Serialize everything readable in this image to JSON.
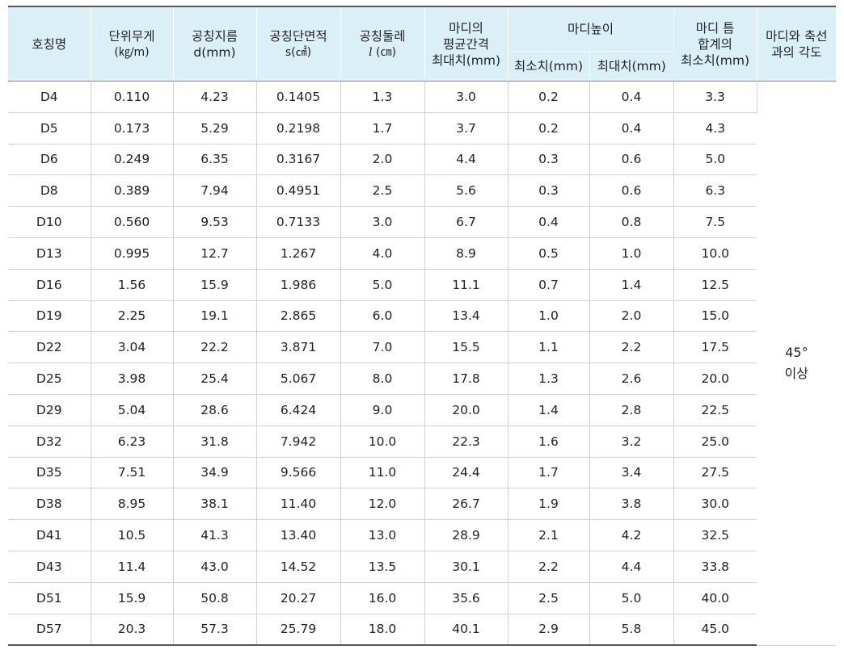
{
  "headers": {
    "name": "호칭명",
    "unit_weight": "단위무게",
    "unit_weight_unit": "(㎏/m)",
    "nominal_diameter": "공칭지름",
    "nominal_diameter_unit": "d(mm)",
    "nominal_area": "공칭단면적",
    "nominal_area_unit": "s(㎠)",
    "nominal_perimeter": "공칭둘레",
    "nominal_perimeter_symbol": "l",
    "nominal_perimeter_unit": "(㎝)",
    "rib_spacing_line1": "마디의",
    "rib_spacing_line2": "평균간격",
    "rib_spacing_line3": "최대치(mm)",
    "rib_height": "마디높이",
    "rib_height_min": "최소치(mm)",
    "rib_height_max": "최대치(mm)",
    "rib_gap_line1": "마디 틈",
    "rib_gap_line2": "합계의",
    "rib_gap_line3": "최소치(mm)",
    "rib_angle_line1": "마디와 축선",
    "rib_angle_line2": "과의 각도"
  },
  "rows": [
    {
      "name": "D4",
      "weight": "0.110",
      "diameter": "4.23",
      "area": "0.1405",
      "perimeter": "1.3",
      "spacing": "3.0",
      "hmin": "0.2",
      "hmax": "0.4",
      "gap": "3.3"
    },
    {
      "name": "D5",
      "weight": "0.173",
      "diameter": "5.29",
      "area": "0.2198",
      "perimeter": "1.7",
      "spacing": "3.7",
      "hmin": "0.2",
      "hmax": "0.4",
      "gap": "4.3"
    },
    {
      "name": "D6",
      "weight": "0.249",
      "diameter": "6.35",
      "area": "0.3167",
      "perimeter": "2.0",
      "spacing": "4.4",
      "hmin": "0.3",
      "hmax": "0.6",
      "gap": "5.0"
    },
    {
      "name": "D8",
      "weight": "0.389",
      "diameter": "7.94",
      "area": "0.4951",
      "perimeter": "2.5",
      "spacing": "5.6",
      "hmin": "0.3",
      "hmax": "0.6",
      "gap": "6.3"
    },
    {
      "name": "D10",
      "weight": "0.560",
      "diameter": "9.53",
      "area": "0.7133",
      "perimeter": "3.0",
      "spacing": "6.7",
      "hmin": "0.4",
      "hmax": "0.8",
      "gap": "7.5"
    },
    {
      "name": "D13",
      "weight": "0.995",
      "diameter": "12.7",
      "area": "1.267",
      "perimeter": "4.0",
      "spacing": "8.9",
      "hmin": "0.5",
      "hmax": "1.0",
      "gap": "10.0"
    },
    {
      "name": "D16",
      "weight": "1.56",
      "diameter": "15.9",
      "area": "1.986",
      "perimeter": "5.0",
      "spacing": "11.1",
      "hmin": "0.7",
      "hmax": "1.4",
      "gap": "12.5"
    },
    {
      "name": "D19",
      "weight": "2.25",
      "diameter": "19.1",
      "area": "2.865",
      "perimeter": "6.0",
      "spacing": "13.4",
      "hmin": "1.0",
      "hmax": "2.0",
      "gap": "15.0"
    },
    {
      "name": "D22",
      "weight": "3.04",
      "diameter": "22.2",
      "area": "3.871",
      "perimeter": "7.0",
      "spacing": "15.5",
      "hmin": "1.1",
      "hmax": "2.2",
      "gap": "17.5"
    },
    {
      "name": "D25",
      "weight": "3.98",
      "diameter": "25.4",
      "area": "5.067",
      "perimeter": "8.0",
      "spacing": "17.8",
      "hmin": "1.3",
      "hmax": "2.6",
      "gap": "20.0"
    },
    {
      "name": "D29",
      "weight": "5.04",
      "diameter": "28.6",
      "area": "6.424",
      "perimeter": "9.0",
      "spacing": "20.0",
      "hmin": "1.4",
      "hmax": "2.8",
      "gap": "22.5"
    },
    {
      "name": "D32",
      "weight": "6.23",
      "diameter": "31.8",
      "area": "7.942",
      "perimeter": "10.0",
      "spacing": "22.3",
      "hmin": "1.6",
      "hmax": "3.2",
      "gap": "25.0"
    },
    {
      "name": "D35",
      "weight": "7.51",
      "diameter": "34.9",
      "area": "9.566",
      "perimeter": "11.0",
      "spacing": "24.4",
      "hmin": "1.7",
      "hmax": "3.4",
      "gap": "27.5"
    },
    {
      "name": "D38",
      "weight": "8.95",
      "diameter": "38.1",
      "area": "11.40",
      "perimeter": "12.0",
      "spacing": "26.7",
      "hmin": "1.9",
      "hmax": "3.8",
      "gap": "30.0"
    },
    {
      "name": "D41",
      "weight": "10.5",
      "diameter": "41.3",
      "area": "13.40",
      "perimeter": "13.0",
      "spacing": "28.9",
      "hmin": "2.1",
      "hmax": "4.2",
      "gap": "32.5"
    },
    {
      "name": "D43",
      "weight": "11.4",
      "diameter": "43.0",
      "area": "14.52",
      "perimeter": "13.5",
      "spacing": "30.1",
      "hmin": "2.2",
      "hmax": "4.4",
      "gap": "33.8"
    },
    {
      "name": "D51",
      "weight": "15.9",
      "diameter": "50.8",
      "area": "20.27",
      "perimeter": "16.0",
      "spacing": "35.6",
      "hmin": "2.5",
      "hmax": "5.0",
      "gap": "40.0"
    },
    {
      "name": "D57",
      "weight": "20.3",
      "diameter": "57.3",
      "area": "25.79",
      "perimeter": "18.0",
      "spacing": "40.1",
      "hmin": "2.9",
      "hmax": "5.8",
      "gap": "45.0"
    }
  ],
  "angle_value_line1": "45°",
  "angle_value_line2": "이상",
  "colors": {
    "header_bg": "#dbeff7",
    "rule_dark": "#555555",
    "grid_light": "#d0d0d0"
  }
}
